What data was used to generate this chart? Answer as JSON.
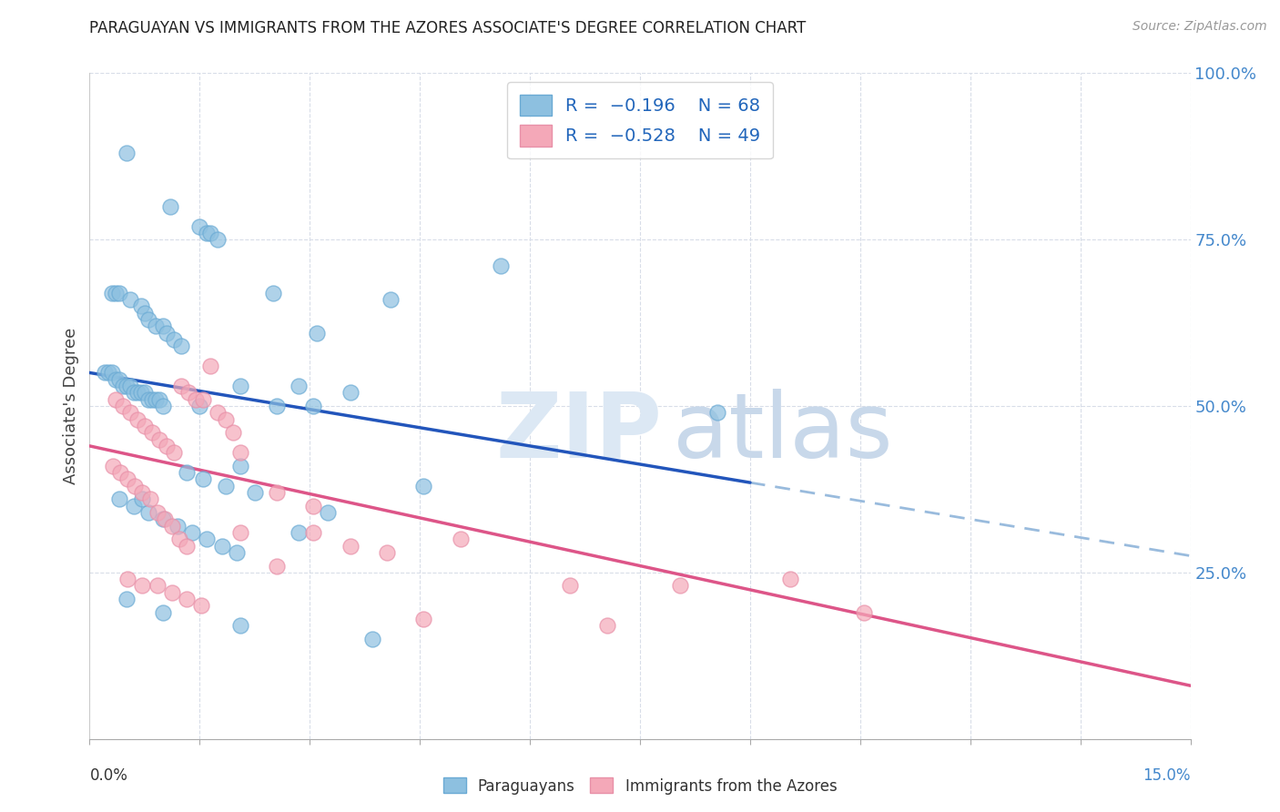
{
  "title": "PARAGUAYAN VS IMMIGRANTS FROM THE AZORES ASSOCIATE'S DEGREE CORRELATION CHART",
  "source": "Source: ZipAtlas.com",
  "ylabel": "Associate's Degree",
  "xlim": [
    0.0,
    15.0
  ],
  "ylim": [
    0.0,
    100.0
  ],
  "yticks": [
    0,
    25,
    50,
    75,
    100
  ],
  "ytick_labels": [
    "",
    "25.0%",
    "50.0%",
    "75.0%",
    "100.0%"
  ],
  "xtick_left_label": "0.0%",
  "xtick_right_label": "15.0%",
  "blue_color": "#8dc0e0",
  "blue_edge_color": "#6aaad4",
  "pink_color": "#f4a8b8",
  "pink_edge_color": "#e890a8",
  "blue_line_color": "#2255bb",
  "pink_line_color": "#dd5588",
  "dashed_line_color": "#99bbdd",
  "grid_color": "#d8dde8",
  "watermark_zip_color": "#dce8f4",
  "watermark_atlas_color": "#c8d8ea",
  "paraguayan_x": [
    0.5,
    1.1,
    1.5,
    1.6,
    1.65,
    1.75,
    0.3,
    0.35,
    0.4,
    0.55,
    0.7,
    0.75,
    0.8,
    0.9,
    1.0,
    1.05,
    1.15,
    1.25,
    0.2,
    0.25,
    0.3,
    0.35,
    0.4,
    0.45,
    0.5,
    0.55,
    0.6,
    0.65,
    0.7,
    0.75,
    0.8,
    0.85,
    0.9,
    0.95,
    1.0,
    2.5,
    3.1,
    4.1,
    5.6,
    2.05,
    2.85,
    3.55,
    2.05,
    1.55,
    1.85,
    2.25,
    0.4,
    0.6,
    0.8,
    1.0,
    1.2,
    1.4,
    1.6,
    1.8,
    2.0,
    3.25,
    4.55,
    0.5,
    1.0,
    2.05,
    3.85,
    1.5,
    2.55,
    3.05,
    0.72,
    1.32,
    2.85,
    8.55
  ],
  "paraguayan_y": [
    88,
    80,
    77,
    76,
    76,
    75,
    67,
    67,
    67,
    66,
    65,
    64,
    63,
    62,
    62,
    61,
    60,
    59,
    55,
    55,
    55,
    54,
    54,
    53,
    53,
    53,
    52,
    52,
    52,
    52,
    51,
    51,
    51,
    51,
    50,
    67,
    61,
    66,
    71,
    53,
    53,
    52,
    41,
    39,
    38,
    37,
    36,
    35,
    34,
    33,
    32,
    31,
    30,
    29,
    28,
    34,
    38,
    21,
    19,
    17,
    15,
    50,
    50,
    50,
    36,
    40,
    31,
    49
  ],
  "azores_x": [
    0.35,
    0.45,
    0.55,
    0.65,
    0.75,
    0.85,
    0.95,
    1.05,
    1.15,
    1.25,
    1.35,
    1.45,
    1.55,
    1.65,
    1.75,
    1.85,
    1.95,
    2.05,
    2.55,
    3.05,
    3.55,
    4.05,
    0.32,
    0.42,
    0.52,
    0.62,
    0.72,
    0.82,
    0.92,
    1.02,
    1.12,
    1.22,
    1.32,
    0.52,
    0.72,
    0.92,
    1.12,
    1.32,
    1.52,
    2.05,
    2.55,
    3.05,
    8.05,
    9.55,
    10.55,
    5.05,
    6.55,
    7.05,
    4.55
  ],
  "azores_y": [
    51,
    50,
    49,
    48,
    47,
    46,
    45,
    44,
    43,
    53,
    52,
    51,
    51,
    56,
    49,
    48,
    46,
    43,
    37,
    35,
    29,
    28,
    41,
    40,
    39,
    38,
    37,
    36,
    34,
    33,
    32,
    30,
    29,
    24,
    23,
    23,
    22,
    21,
    20,
    31,
    26,
    31,
    23,
    24,
    19,
    30,
    23,
    17,
    18
  ],
  "blue_reg_x0": 0.0,
  "blue_reg_y0": 55.0,
  "blue_reg_x1": 9.0,
  "blue_reg_y1": 38.5,
  "blue_dash_x0": 9.0,
  "blue_dash_y0": 38.5,
  "blue_dash_x1": 15.0,
  "blue_dash_y1": 27.5,
  "pink_reg_x0": 0.0,
  "pink_reg_y0": 44.0,
  "pink_reg_x1": 15.0,
  "pink_reg_y1": 8.0
}
